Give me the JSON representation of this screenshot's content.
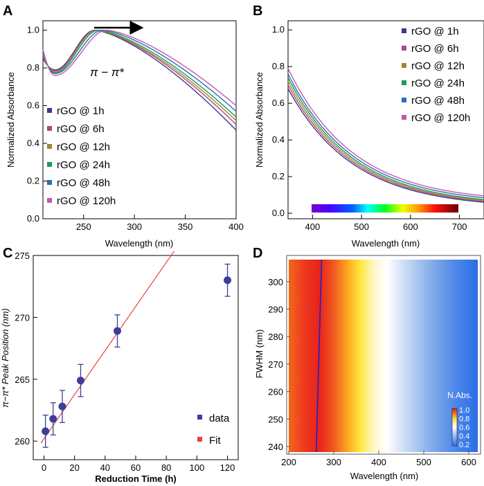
{
  "chart_data": [
    {
      "panel": "A",
      "type": "line",
      "xlabel": "Wavelength (nm)",
      "ylabel": "Normalized Absorbance",
      "xlim": [
        210,
        400
      ],
      "ylim": [
        0.0,
        1.05
      ],
      "xticks": [
        250,
        300,
        350,
        400
      ],
      "yticks": [
        "0.0",
        "0.2",
        "0.4",
        "0.6",
        "0.8",
        "1.0"
      ],
      "annotation": "π − π*",
      "arrow": "peak red-shift (→)",
      "legend_position": "bottom-left",
      "series": [
        {
          "name": "rGO @ 1h",
          "color": "#3a3a8c",
          "peak": 261,
          "min_y": 0.79,
          "end_y": 0.47,
          "start_y": 0.85
        },
        {
          "name": "rGO @ 6h",
          "color": "#b5457a",
          "peak": 262,
          "min_y": 0.785,
          "end_y": 0.5,
          "start_y": 0.86
        },
        {
          "name": "rGO @ 12h",
          "color": "#9c8a2e",
          "peak": 263,
          "min_y": 0.78,
          "end_y": 0.52,
          "start_y": 0.87
        },
        {
          "name": "rGO @ 24h",
          "color": "#1f9a5a",
          "peak": 265,
          "min_y": 0.775,
          "end_y": 0.54,
          "start_y": 0.88
        },
        {
          "name": "rGO @ 48h",
          "color": "#2a6fb5",
          "peak": 269,
          "min_y": 0.77,
          "end_y": 0.57,
          "start_y": 0.89
        },
        {
          "name": "rGO @ 120h",
          "color": "#c457b0",
          "peak": 273,
          "min_y": 0.76,
          "end_y": 0.6,
          "start_y": 0.9
        }
      ]
    },
    {
      "panel": "B",
      "type": "line",
      "xlabel": "Wavelength (nm)",
      "ylabel": "Normalized Absorbance",
      "xlim": [
        350,
        750
      ],
      "ylim": [
        -0.03,
        1.05
      ],
      "xticks": [
        400,
        500,
        600,
        700
      ],
      "yticks": [
        "0.0",
        "0.2",
        "0.4",
        "0.6",
        "0.8",
        "1.0"
      ],
      "colorbar": "visible spectrum 400–700 nm",
      "legend_position": "top-right",
      "series": [
        {
          "name": "rGO @ 1h",
          "color": "#3a3a8c",
          "y350": 0.68,
          "y750": 0.06
        },
        {
          "name": "rGO @ 6h",
          "color": "#b5457a",
          "y350": 0.7,
          "y750": 0.065
        },
        {
          "name": "rGO @ 12h",
          "color": "#9c8a2e",
          "y350": 0.72,
          "y750": 0.07
        },
        {
          "name": "rGO @ 24h",
          "color": "#1f9a5a",
          "y350": 0.74,
          "y750": 0.075
        },
        {
          "name": "rGO @ 48h",
          "color": "#2a6fb5",
          "y350": 0.76,
          "y750": 0.085
        },
        {
          "name": "rGO @ 120h",
          "color": "#c457b0",
          "y350": 0.79,
          "y750": 0.095
        }
      ]
    },
    {
      "panel": "C",
      "type": "scatter",
      "xlabel": "Reduction Time (h)",
      "ylabel": "π−π* Peak Position (nm)",
      "xlim": [
        -7,
        127
      ],
      "ylim": [
        258.5,
        275
      ],
      "xticks": [
        0,
        20,
        40,
        60,
        80,
        100,
        120
      ],
      "yticks": [
        260,
        265,
        270,
        275
      ],
      "legend_position": "bottom-right",
      "series": [
        {
          "name": "data",
          "color": "#3d3d9a",
          "x": [
            1,
            6,
            12,
            24,
            48,
            120
          ],
          "y": [
            260.8,
            261.8,
            262.8,
            264.9,
            268.9,
            273.0
          ],
          "err": [
            1.3,
            1.3,
            1.3,
            1.3,
            1.3,
            1.3
          ]
        },
        {
          "name": "Fit",
          "color": "#e84040",
          "slope": 0.178,
          "intercept": 260.2,
          "x_range": [
            -2,
            85
          ]
        }
      ]
    },
    {
      "panel": "D",
      "type": "heatmap",
      "xlabel": "Wavelength (nm)",
      "ylabel": "FWHM (nm)",
      "xlim": [
        200,
        620
      ],
      "ylim": [
        238,
        308
      ],
      "xticks": [
        200,
        300,
        400,
        500,
        600
      ],
      "yticks": [
        240,
        250,
        260,
        270,
        280,
        290,
        300
      ],
      "peak_line": {
        "x_start": 261,
        "x_end": 273
      },
      "colorbar": {
        "title": "N.Abs.",
        "ticks": [
          "1.0",
          "0.8",
          "0.6",
          "0.4",
          "0.2"
        ]
      }
    }
  ],
  "panel_labels": [
    "A",
    "B",
    "C",
    "D"
  ]
}
